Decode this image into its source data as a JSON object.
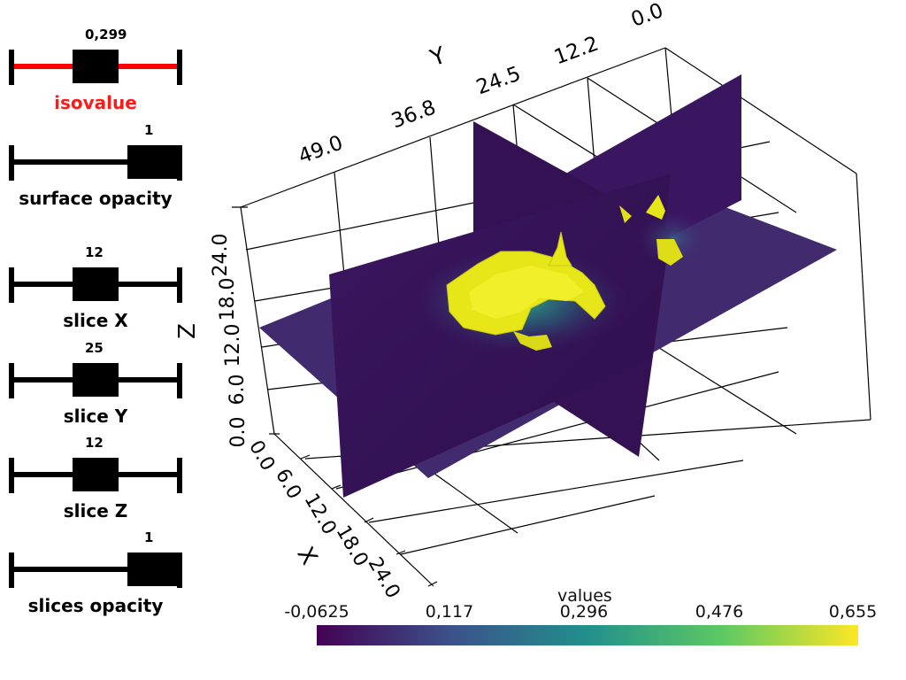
{
  "sliders": [
    {
      "id": "isovalue",
      "label": "isovalue",
      "value": "0,299",
      "fraction": 0.5,
      "knob": "narrow",
      "label_color": "#ff1a1a",
      "track_color": "#ff0000"
    },
    {
      "id": "surface-opacity",
      "label": "surface opacity",
      "value": "1",
      "fraction": 1.0,
      "knob": "wide",
      "label_color": "#000000",
      "track_color": "#000000"
    },
    {
      "id": "slice-x",
      "label": "slice X",
      "value": "12",
      "fraction": 0.5,
      "knob": "narrow",
      "label_color": "#000000",
      "track_color": "#000000"
    },
    {
      "id": "slice-y",
      "label": "slice Y",
      "value": "25",
      "fraction": 0.5,
      "knob": "narrow",
      "label_color": "#000000",
      "track_color": "#000000"
    },
    {
      "id": "slice-z",
      "label": "slice Z",
      "value": "12",
      "fraction": 0.5,
      "knob": "narrow",
      "label_color": "#000000",
      "track_color": "#000000"
    },
    {
      "id": "slices-opacity",
      "label": "slices opacity",
      "value": "1",
      "fraction": 1.0,
      "knob": "wide",
      "label_color": "#000000",
      "track_color": "#000000"
    }
  ],
  "axes": {
    "x_label": "X",
    "y_label": "Y",
    "z_label": "Z",
    "x_ticks": [
      "0.0",
      "6.0",
      "12.0",
      "18.0",
      "24.0"
    ],
    "y_ticks": [
      "49.0",
      "36.8",
      "24.5",
      "12.2",
      "0.0"
    ],
    "z_ticks": [
      "0.0",
      "6.0",
      "12.0",
      "18.0",
      "24.0"
    ]
  },
  "colorbar": {
    "title": "values",
    "ticks": [
      "-0,0625",
      "0,117",
      "0,296",
      "0,476",
      "0,655"
    ],
    "colors": [
      "#440154",
      "#3b528b",
      "#21908c",
      "#5dc963",
      "#fde725"
    ]
  },
  "colors": {
    "slice_dark": "#3b0f5a",
    "slice_mid": "#402a6e",
    "surface": "#e6e619",
    "surface_shade": "#b5b812",
    "glow": "#2d8f8a"
  }
}
